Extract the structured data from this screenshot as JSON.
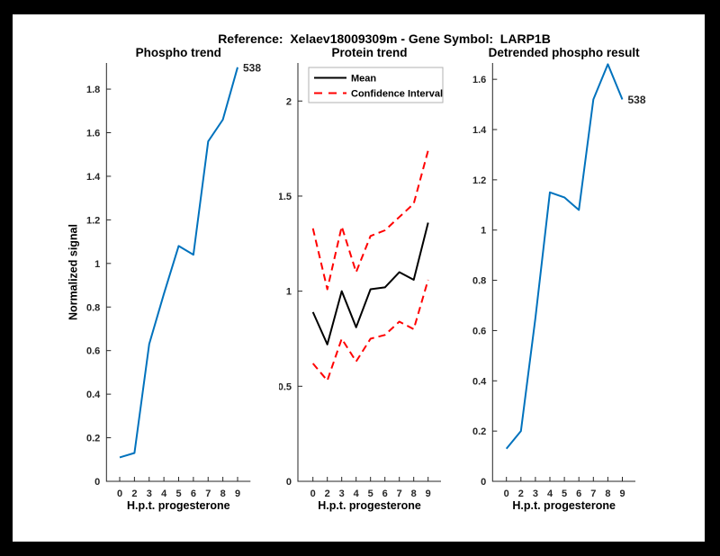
{
  "figure": {
    "title": "Reference:  Xelaev18009309m - Gene Symbol:  LARP1B",
    "background_color": "#000000",
    "canvas_color": "#ffffff",
    "accent_blue": "#0072BD",
    "accent_red": "#ff0000"
  },
  "chart_data": [
    {
      "type": "line",
      "title": "Phospho trend",
      "xlabel": "H.p.t. progesterone",
      "ylabel": "Normalized signal",
      "x_ticklabels": [
        "0",
        "2",
        "3",
        "4",
        "5",
        "6",
        "7",
        "8",
        "9"
      ],
      "y_ticks": [
        0,
        0.2,
        0.4,
        0.6,
        0.8,
        1,
        1.2,
        1.4,
        1.6,
        1.8
      ],
      "ylim": [
        0,
        1.92
      ],
      "grid": false,
      "legend": null,
      "end_label": "538",
      "series": [
        {
          "name": "Phospho signal",
          "color": "#0072BD",
          "style": "solid",
          "values": [
            0.11,
            0.13,
            0.63,
            0.86,
            1.08,
            1.04,
            1.56,
            1.66,
            1.9
          ]
        }
      ]
    },
    {
      "type": "line",
      "title": "Protein trend",
      "xlabel": "H.p.t. progesterone",
      "ylabel": "",
      "x_ticklabels": [
        "0",
        "2",
        "3",
        "4",
        "5",
        "6",
        "7",
        "8",
        "9"
      ],
      "y_ticks": [
        0,
        0.5,
        1,
        1.5,
        2
      ],
      "ylim": [
        0,
        2.2
      ],
      "grid": false,
      "legend": {
        "position": "northwest",
        "entries": [
          {
            "label": "Mean",
            "color": "#000000",
            "style": "solid"
          },
          {
            "label": "Confidence Interval",
            "color": "#ff0000",
            "style": "dashed"
          }
        ]
      },
      "end_label": null,
      "series": [
        {
          "name": "Mean",
          "color": "#000000",
          "style": "solid",
          "values": [
            0.89,
            0.72,
            1.0,
            0.81,
            1.01,
            1.02,
            1.1,
            1.06,
            1.36
          ]
        },
        {
          "name": "CI upper",
          "color": "#ff0000",
          "style": "dashed",
          "values": [
            1.33,
            1.01,
            1.34,
            1.1,
            1.29,
            1.32,
            1.39,
            1.46,
            1.74
          ]
        },
        {
          "name": "CI lower",
          "color": "#ff0000",
          "style": "dashed",
          "values": [
            0.62,
            0.53,
            0.75,
            0.63,
            0.75,
            0.77,
            0.84,
            0.8,
            1.06
          ]
        }
      ]
    },
    {
      "type": "line",
      "title": "Detrended phospho result",
      "xlabel": "H.p.t. progesterone",
      "ylabel": "",
      "x_ticklabels": [
        "0",
        "2",
        "3",
        "4",
        "5",
        "6",
        "7",
        "8",
        "9"
      ],
      "y_ticks": [
        0,
        0.2,
        0.4,
        0.6,
        0.8,
        1,
        1.2,
        1.4,
        1.6
      ],
      "ylim": [
        0,
        1.665
      ],
      "grid": false,
      "legend": null,
      "end_label": "538",
      "series": [
        {
          "name": "Detrended phospho",
          "color": "#0072BD",
          "style": "solid",
          "values": [
            0.13,
            0.2,
            0.65,
            1.15,
            1.13,
            1.08,
            1.52,
            1.66,
            1.52
          ]
        }
      ]
    }
  ]
}
